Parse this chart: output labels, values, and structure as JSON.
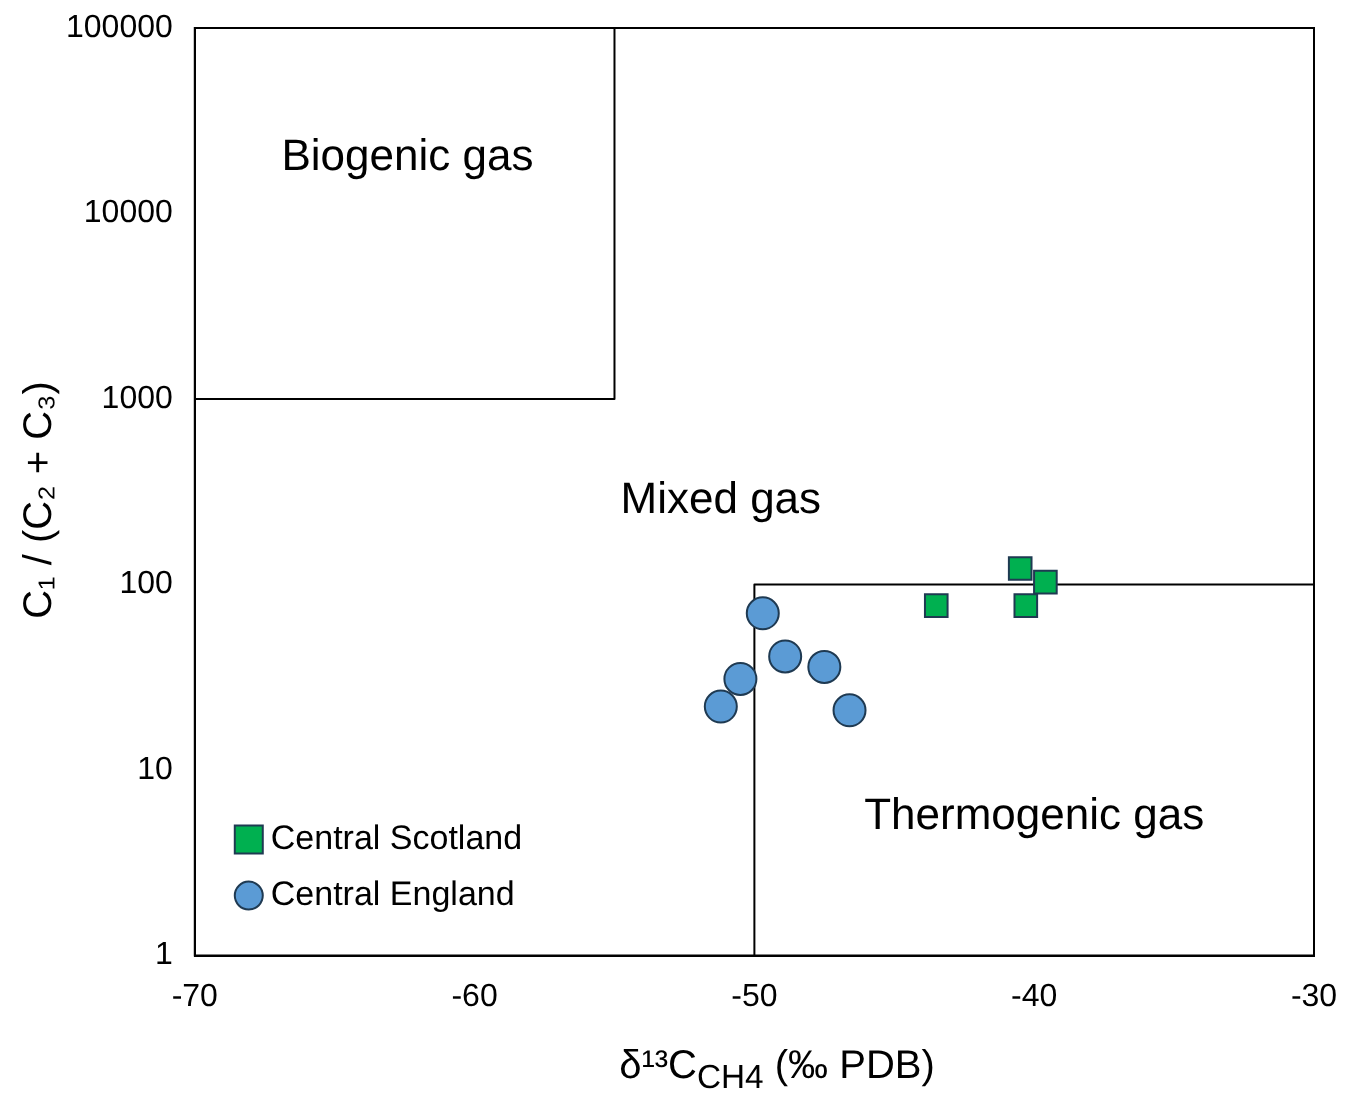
{
  "chart_data": {
    "type": "scatter",
    "xlabel": "δ¹³C$_{CH4}$ (‰ PDB)",
    "ylabel": "C₁ / (C₂ + C₃)",
    "log": "y",
    "xlim": [
      -70,
      -30
    ],
    "xticks": [
      -70,
      -60,
      -50,
      -40,
      -30
    ],
    "ylim": [
      1,
      100000
    ],
    "yticks": [
      1,
      10,
      100,
      1000,
      10000,
      100000
    ],
    "grid": false,
    "legend": "bottom left",
    "series": [
      {
        "name": "Central Scotland",
        "color": "#00b050",
        "marker": "square",
        "x": [
          -43.5,
          -40.5,
          -39.6,
          -40.3
        ],
        "values": [
          77,
          122,
          103,
          77
        ]
      },
      {
        "name": "Central England",
        "color": "#5b9bd5",
        "marker": "circle",
        "x": [
          -49.7,
          -50.5,
          -51.2,
          -48.9,
          -47.5,
          -46.6
        ],
        "values": [
          70,
          31,
          22,
          41,
          36,
          21
        ]
      },
      {
        "type": "line",
        "color": "#000000",
        "marker": "none",
        "x": [
          -70,
          -55,
          -55
        ],
        "values": [
          1000,
          1000,
          100000
        ]
      },
      {
        "type": "line",
        "color": "#000000",
        "marker": "none",
        "x": [
          -50,
          -50,
          -30
        ],
        "values": [
          1,
          100,
          100
        ]
      }
    ],
    "annotations": [
      "Biogenic gas",
      "Mixed gas",
      "Thermogenic gas"
    ]
  }
}
